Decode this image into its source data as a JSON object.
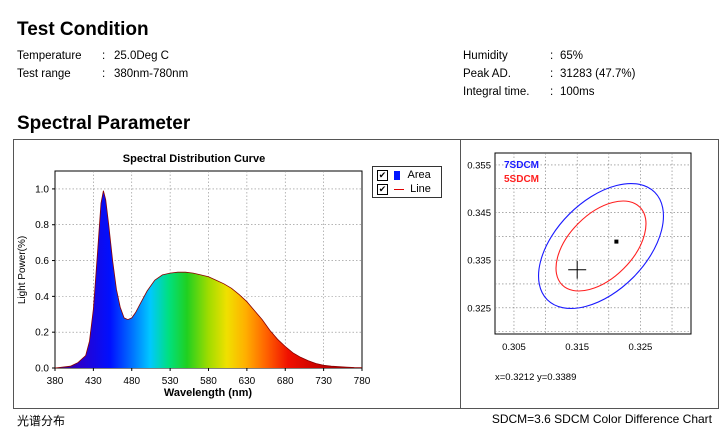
{
  "test_condition": {
    "title": "Test Condition",
    "rows_left": [
      {
        "label": "Temperature",
        "value": "25.0Deg C"
      },
      {
        "label": "Test range",
        "value": "380nm-780nm"
      }
    ],
    "rows_right": [
      {
        "label": "Humidity",
        "value": "65%"
      },
      {
        "label": "Peak AD.",
        "value": "31283 (47.7%)"
      },
      {
        "label": "Integral  time.",
        "value": "100ms"
      }
    ]
  },
  "spectral_parameter": {
    "title": "Spectral Parameter"
  },
  "legend": {
    "area_label": "Area",
    "line_label": "Line",
    "area_checked": "✔",
    "line_checked": "✔"
  },
  "sdcm": {
    "label_7": "7SDCM",
    "label_5": "5SDCM",
    "x_ticks": [
      "0.305",
      "0.315",
      "0.325"
    ],
    "y_ticks": [
      "0.355",
      "0.345",
      "0.335",
      "0.325"
    ],
    "readout": "x=0.3212   y=0.3389",
    "color_7": "#1a1aff",
    "color_5": "#ff2020"
  },
  "footer": {
    "left": "光谱分布",
    "right": "SDCM=3.6  SDCM Color Difference Chart"
  },
  "chart_data": [
    {
      "type": "area",
      "title": "Spectral Distribution Curve",
      "xlabel": "Wavelength  (nm)",
      "ylabel": "Light Power(%)",
      "xlim": [
        380,
        780
      ],
      "ylim": [
        0,
        1.1
      ],
      "x_ticks": [
        "380",
        "430",
        "480",
        "530",
        "580",
        "630",
        "680",
        "730",
        "780"
      ],
      "y_ticks": [
        "0.0",
        "0.2",
        "0.4",
        "0.6",
        "0.8",
        "1.0"
      ],
      "grid": true,
      "series": [
        {
          "x": [
            380,
            400,
            410,
            420,
            425,
            430,
            435,
            440,
            443,
            446,
            450,
            455,
            460,
            465,
            470,
            475,
            480,
            485,
            490,
            500,
            510,
            520,
            530,
            540,
            550,
            560,
            570,
            580,
            590,
            600,
            610,
            620,
            630,
            640,
            650,
            660,
            670,
            680,
            690,
            700,
            710,
            720,
            730,
            740,
            750,
            760,
            770,
            780
          ],
          "y": [
            0.0,
            0.01,
            0.03,
            0.07,
            0.15,
            0.33,
            0.62,
            0.92,
            0.99,
            0.94,
            0.8,
            0.6,
            0.44,
            0.34,
            0.28,
            0.27,
            0.28,
            0.31,
            0.35,
            0.43,
            0.49,
            0.52,
            0.53,
            0.535,
            0.535,
            0.53,
            0.52,
            0.51,
            0.49,
            0.47,
            0.445,
            0.41,
            0.37,
            0.32,
            0.27,
            0.21,
            0.16,
            0.12,
            0.085,
            0.06,
            0.04,
            0.025,
            0.015,
            0.01,
            0.008,
            0.005,
            0.003,
            0.002
          ]
        }
      ]
    },
    {
      "type": "scatter",
      "title": "",
      "xlim": [
        0.302,
        0.333
      ],
      "ylim": [
        0.3195,
        0.3575
      ],
      "points": [
        {
          "x": 0.3212,
          "y": 0.3389,
          "marker": "square"
        },
        {
          "x": 0.315,
          "y": 0.333,
          "marker": "cross"
        }
      ]
    }
  ]
}
